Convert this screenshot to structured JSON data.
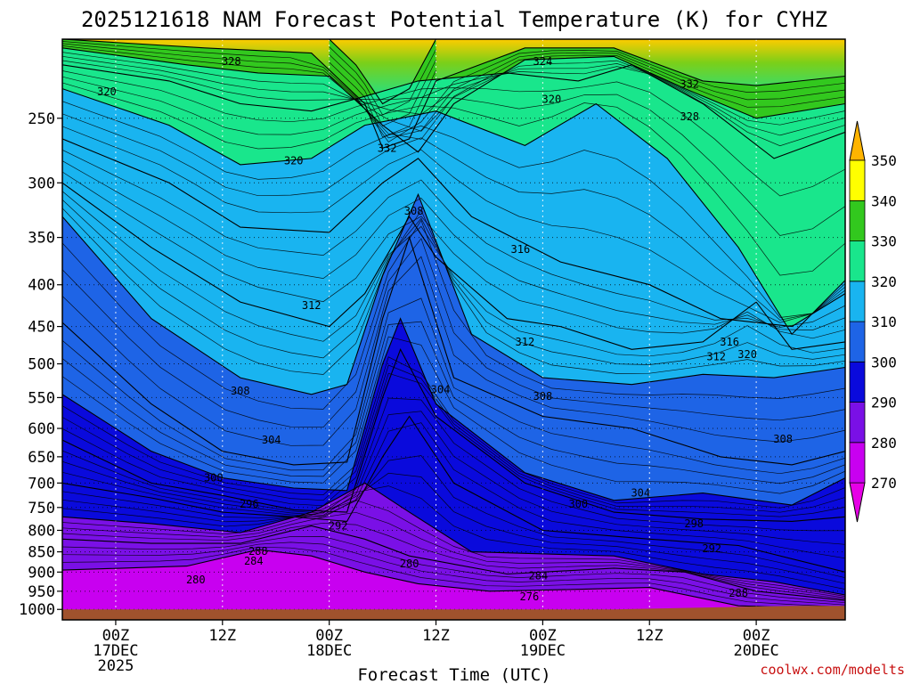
{
  "chart_data": {
    "type": "contour",
    "title": "2025121618 NAM Forecast Potential Temperature (K) for CYHZ",
    "xlabel": "Forecast Time (UTC)",
    "ylabel": "",
    "y_ticks": [
      250,
      300,
      350,
      400,
      450,
      500,
      550,
      600,
      650,
      700,
      750,
      800,
      850,
      900,
      950,
      1000
    ],
    "y_range_hpa": [
      200,
      1030
    ],
    "y_scale": "log",
    "x_range_hours": [
      -6,
      82
    ],
    "x_ticks": [
      {
        "hours": 0,
        "line1": "00Z",
        "line2": "17DEC",
        "line3": "2025"
      },
      {
        "hours": 12,
        "line1": "12Z",
        "line2": "",
        "line3": ""
      },
      {
        "hours": 24,
        "line1": "00Z",
        "line2": "18DEC",
        "line3": ""
      },
      {
        "hours": 36,
        "line1": "12Z",
        "line2": "",
        "line3": ""
      },
      {
        "hours": 48,
        "line1": "00Z",
        "line2": "19DEC",
        "line3": ""
      },
      {
        "hours": 60,
        "line1": "12Z",
        "line2": "",
        "line3": ""
      },
      {
        "hours": 72,
        "line1": "00Z",
        "line2": "20DEC",
        "line3": ""
      }
    ],
    "colorbar": {
      "units": "K",
      "labels": [
        270,
        280,
        290,
        300,
        310,
        320,
        330,
        340,
        350
      ],
      "bins": [
        {
          "from": 265,
          "to": 270,
          "color": "#e600e6"
        },
        {
          "from": 270,
          "to": 280,
          "color": "#c800f0"
        },
        {
          "from": 280,
          "to": 290,
          "color": "#7a10e6"
        },
        {
          "from": 290,
          "to": 300,
          "color": "#0a0adc"
        },
        {
          "from": 300,
          "to": 310,
          "color": "#1e64e6"
        },
        {
          "from": 310,
          "to": 320,
          "color": "#19b4f0"
        },
        {
          "from": 320,
          "to": 330,
          "color": "#19e68c"
        },
        {
          "from": 330,
          "to": 340,
          "color": "#32c81e"
        },
        {
          "from": 340,
          "to": 350,
          "color": "#ffff00"
        },
        {
          "from": 350,
          "to": 360,
          "color": "#ffb400"
        }
      ]
    },
    "series": [
      {
        "theta": 280,
        "p": [
          [
            -6,
            895
          ],
          [
            8,
            885
          ],
          [
            16,
            845
          ],
          [
            22,
            860
          ],
          [
            28,
            900
          ],
          [
            34,
            930
          ],
          [
            42,
            950
          ],
          [
            52,
            945
          ],
          [
            60,
            940
          ],
          [
            70,
            990
          ],
          [
            82,
            1000
          ]
        ]
      },
      {
        "theta": 284,
        "p": [
          [
            -6,
            820
          ],
          [
            4,
            830
          ],
          [
            14,
            830
          ],
          [
            22,
            790
          ],
          [
            28,
            820
          ],
          [
            33,
            860
          ],
          [
            44,
            905
          ],
          [
            56,
            890
          ],
          [
            64,
            900
          ],
          [
            72,
            950
          ],
          [
            82,
            975
          ]
        ]
      },
      {
        "theta": 288,
        "p": [
          [
            -6,
            770
          ],
          [
            4,
            785
          ],
          [
            14,
            805
          ],
          [
            22,
            760
          ],
          [
            28,
            700
          ],
          [
            33,
            760
          ],
          [
            40,
            850
          ],
          [
            56,
            860
          ],
          [
            66,
            905
          ],
          [
            74,
            925
          ],
          [
            82,
            960
          ]
        ]
      },
      {
        "theta": 292,
        "p": [
          [
            -6,
            700
          ],
          [
            4,
            730
          ],
          [
            12,
            760
          ],
          [
            20,
            770
          ],
          [
            26,
            780
          ],
          [
            30,
            650
          ],
          [
            33,
            580
          ],
          [
            38,
            700
          ],
          [
            48,
            800
          ],
          [
            60,
            820
          ],
          [
            70,
            835
          ],
          [
            82,
            900
          ]
        ]
      },
      {
        "theta": 296,
        "p": [
          [
            -6,
            620
          ],
          [
            4,
            700
          ],
          [
            12,
            725
          ],
          [
            20,
            755
          ],
          [
            26,
            760
          ],
          [
            30,
            550
          ],
          [
            32,
            480
          ],
          [
            36,
            580
          ],
          [
            46,
            700
          ],
          [
            56,
            760
          ],
          [
            66,
            775
          ],
          [
            76,
            780
          ],
          [
            82,
            770
          ]
        ]
      },
      {
        "theta": 300,
        "p": [
          [
            -6,
            545
          ],
          [
            4,
            640
          ],
          [
            12,
            690
          ],
          [
            20,
            710
          ],
          [
            26,
            715
          ],
          [
            30,
            500
          ],
          [
            32,
            440
          ],
          [
            36,
            560
          ],
          [
            46,
            680
          ],
          [
            56,
            735
          ],
          [
            66,
            720
          ],
          [
            76,
            745
          ],
          [
            82,
            690
          ]
        ]
      },
      {
        "theta": 304,
        "p": [
          [
            -6,
            445
          ],
          [
            4,
            560
          ],
          [
            12,
            640
          ],
          [
            20,
            665
          ],
          [
            26,
            660
          ],
          [
            30,
            440
          ],
          [
            33,
            350
          ],
          [
            38,
            520
          ],
          [
            48,
            580
          ],
          [
            58,
            600
          ],
          [
            68,
            650
          ],
          [
            76,
            665
          ],
          [
            82,
            640
          ]
        ]
      },
      {
        "theta": 308,
        "p": [
          [
            -6,
            330
          ],
          [
            4,
            440
          ],
          [
            14,
            520
          ],
          [
            22,
            545
          ],
          [
            26,
            530
          ],
          [
            30,
            390
          ],
          [
            34,
            310
          ],
          [
            40,
            460
          ],
          [
            48,
            520
          ],
          [
            58,
            530
          ],
          [
            66,
            515
          ],
          [
            74,
            520
          ],
          [
            82,
            505
          ]
        ]
      },
      {
        "theta": 312,
        "p": [
          [
            -6,
            300
          ],
          [
            4,
            360
          ],
          [
            14,
            420
          ],
          [
            24,
            450
          ],
          [
            28,
            410
          ],
          [
            33,
            330
          ],
          [
            36,
            370
          ],
          [
            44,
            440
          ],
          [
            50,
            450
          ],
          [
            58,
            480
          ],
          [
            66,
            470
          ],
          [
            72,
            420
          ],
          [
            76,
            480
          ],
          [
            82,
            470
          ]
        ]
      },
      {
        "theta": 316,
        "p": [
          [
            -6,
            265
          ],
          [
            6,
            300
          ],
          [
            14,
            340
          ],
          [
            24,
            345
          ],
          [
            30,
            300
          ],
          [
            34,
            280
          ],
          [
            40,
            330
          ],
          [
            50,
            375
          ],
          [
            60,
            400
          ],
          [
            68,
            440
          ],
          [
            76,
            450
          ],
          [
            82,
            410
          ]
        ]
      },
      {
        "theta": 320,
        "p": [
          [
            -6,
            230
          ],
          [
            6,
            255
          ],
          [
            14,
            285
          ],
          [
            22,
            280
          ],
          [
            28,
            255
          ],
          [
            32,
            250
          ],
          [
            36,
            245
          ],
          [
            46,
            270
          ],
          [
            54,
            240
          ],
          [
            62,
            280
          ],
          [
            70,
            360
          ],
          [
            76,
            460
          ],
          [
            82,
            395
          ]
        ]
      },
      {
        "theta": 324,
        "p": [
          [
            -6,
            215
          ],
          [
            6,
            225
          ],
          [
            14,
            240
          ],
          [
            22,
            245
          ],
          [
            28,
            235
          ],
          [
            34,
            225
          ],
          [
            44,
            220
          ],
          [
            52,
            225
          ],
          [
            58,
            215
          ],
          [
            66,
            240
          ],
          [
            74,
            280
          ],
          [
            82,
            260
          ]
        ]
      },
      {
        "theta": 328,
        "p": [
          [
            -6,
            205
          ],
          [
            8,
            215
          ],
          [
            16,
            220
          ],
          [
            24,
            222
          ],
          [
            30,
            255
          ],
          [
            34,
            275
          ],
          [
            38,
            240
          ],
          [
            46,
            212
          ],
          [
            56,
            210
          ],
          [
            64,
            230
          ],
          [
            72,
            250
          ],
          [
            82,
            240
          ]
        ]
      },
      {
        "theta": 332,
        "p": [
          [
            -6,
            200
          ],
          [
            10,
            205
          ],
          [
            22,
            208
          ],
          [
            28,
            240
          ],
          [
            30,
            272
          ],
          [
            33,
            265
          ],
          [
            36,
            225
          ],
          [
            46,
            205
          ],
          [
            56,
            205
          ],
          [
            66,
            225
          ],
          [
            72,
            228
          ],
          [
            82,
            222
          ]
        ]
      },
      {
        "theta": 340,
        "p": [
          [
            24,
            200
          ],
          [
            27,
            215
          ],
          [
            30,
            240
          ],
          [
            33,
            230
          ],
          [
            36,
            200
          ]
        ]
      }
    ],
    "contour_labels": [
      {
        "text": "328",
        "t": 13,
        "p": 213
      },
      {
        "text": "320",
        "t": -1,
        "p": 232
      },
      {
        "text": "332",
        "t": 30.5,
        "p": 272
      },
      {
        "text": "324",
        "t": 48,
        "p": 213
      },
      {
        "text": "320",
        "t": 49,
        "p": 237
      },
      {
        "text": "332",
        "t": 64.5,
        "p": 227
      },
      {
        "text": "328",
        "t": 64.5,
        "p": 249
      },
      {
        "text": "320",
        "t": 20,
        "p": 282
      },
      {
        "text": "308",
        "t": 33.5,
        "p": 325
      },
      {
        "text": "316",
        "t": 45.5,
        "p": 362
      },
      {
        "text": "312",
        "t": 22,
        "p": 424
      },
      {
        "text": "312",
        "t": 46,
        "p": 470
      },
      {
        "text": "316",
        "t": 69,
        "p": 470
      },
      {
        "text": "320",
        "t": 71,
        "p": 487
      },
      {
        "text": "312",
        "t": 67.5,
        "p": 490
      },
      {
        "text": "308",
        "t": 14,
        "p": 540
      },
      {
        "text": "304",
        "t": 36.5,
        "p": 538
      },
      {
        "text": "308",
        "t": 48,
        "p": 548
      },
      {
        "text": "304",
        "t": 17.5,
        "p": 620
      },
      {
        "text": "308",
        "t": 75,
        "p": 618
      },
      {
        "text": "300",
        "t": 11,
        "p": 690
      },
      {
        "text": "296",
        "t": 15,
        "p": 743
      },
      {
        "text": "300",
        "t": 52,
        "p": 743
      },
      {
        "text": "304",
        "t": 59,
        "p": 720
      },
      {
        "text": "292",
        "t": 25,
        "p": 790
      },
      {
        "text": "298",
        "t": 65,
        "p": 785
      },
      {
        "text": "288",
        "t": 16,
        "p": 849
      },
      {
        "text": "284",
        "t": 15.5,
        "p": 873
      },
      {
        "text": "292",
        "t": 67,
        "p": 842
      },
      {
        "text": "280",
        "t": 33,
        "p": 879
      },
      {
        "text": "284",
        "t": 47.5,
        "p": 910
      },
      {
        "text": "280",
        "t": 9,
        "p": 920
      },
      {
        "text": "276",
        "t": 46.5,
        "p": 965
      },
      {
        "text": "288",
        "t": 70,
        "p": 955
      }
    ]
  },
  "credit": "coolwx.com/modelts"
}
